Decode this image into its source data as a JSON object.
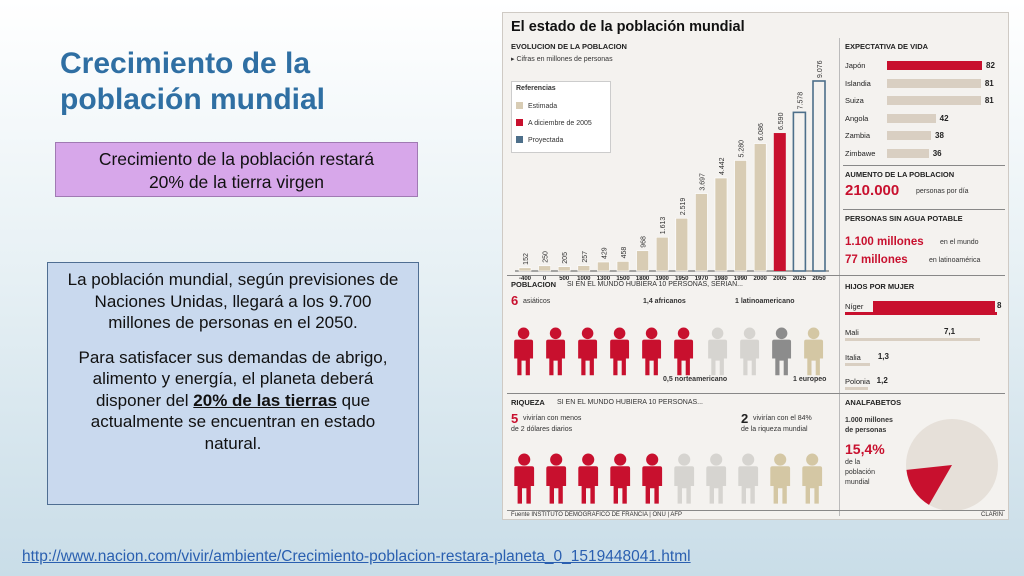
{
  "slide": {
    "title_line1": "Crecimiento de la",
    "title_line2": "población mundial",
    "subtitle_line1": "Crecimiento de la población restará",
    "subtitle_line2": "20% de la tierra virgen",
    "para1": "La población mundial, según previsiones de Naciones Unidas, llegará a los 9.700 millones de personas en el 2050.",
    "para2_pre": "Para satisfacer sus demandas de abrigo, alimento y energía, el planeta deberá disponer del ",
    "para2_bold": "20% de las tierras",
    "para2_post": " que actualmente se encuentran en estado natural.",
    "source_url": "http://www.nacion.com/vivir/ambiente/Crecimiento-poblacion-restara-planeta_0_1519448041.html"
  },
  "infographic": {
    "title": "El estado de la población mundial",
    "evolution_header": "EVOLUCION DE LA POBLACION",
    "evolution_note": "Cifras en millones de personas",
    "legend_title": "Referencias",
    "legend": [
      {
        "label": "Estimada",
        "color": "#d8ccb4"
      },
      {
        "label": "A diciembre de 2005",
        "color": "#c8102e"
      },
      {
        "label": "Proyectada",
        "color": "#4d6f8a"
      }
    ],
    "life_header": "EXPECTATIVA DE VIDA",
    "life": [
      {
        "country": "Japón",
        "value": 82,
        "highlight": true
      },
      {
        "country": "Islandia",
        "value": 81,
        "highlight": false
      },
      {
        "country": "Suiza",
        "value": 81,
        "highlight": false
      },
      {
        "country": "Angola",
        "value": 42,
        "highlight": false
      },
      {
        "country": "Zambia",
        "value": 38,
        "highlight": false
      },
      {
        "country": "Zimbawe",
        "value": 36,
        "highlight": false
      }
    ],
    "growth_header": "AUMENTO DE LA POBLACION",
    "growth_value": "210.000",
    "growth_unit": "personas por día",
    "water_header": "PERSONAS SIN AGUA POTABLE",
    "water_world_value": "1.100 millones",
    "water_world_label": "en el mundo",
    "water_latam_value": "77 millones",
    "water_latam_label": "en latinoamérica",
    "poblacion_header": "POBLACION",
    "poblacion_sub": "SI EN EL MUNDO HUBIERA 10 PERSONAS, SERIAN...",
    "p_asiaticos_n": "6",
    "p_asiaticos": "asiáticos",
    "p_africanos": "1,4 africanos",
    "p_latino": "1 latinoamericano",
    "p_norte": "0,5 norteamericano",
    "p_europeo": "1 europeo",
    "hijos_header": "HIJOS POR MUJER",
    "hijos": [
      {
        "country": "Níger",
        "value": "8",
        "highlight": true
      },
      {
        "country": "Mali",
        "value": "7,1",
        "highlight": false
      },
      {
        "country": "Italia",
        "value": "1,3",
        "highlight": false
      },
      {
        "country": "Polonia",
        "value": "1,2",
        "highlight": false
      }
    ],
    "riqueza_header": "RIQUEZA",
    "riqueza_sub": "SI EN EL MUNDO HUBIERA 10 PERSONAS...",
    "r_pobres_n": "5",
    "r_pobres_line1": "vivirían con menos",
    "r_pobres_line2": "de 2 dólares diarios",
    "r_ricos_n": "2",
    "r_ricos_line1": "vivirían con el 84%",
    "r_ricos_line2": "de la riqueza mundial",
    "analf_header": "ANALFABETOS",
    "analf_line1": "1.000 millones",
    "analf_line2": "de personas",
    "analf_pct": "15,4%",
    "analf_line3": "de la",
    "analf_line4": "población",
    "analf_line5": "mundial",
    "footer_source": "Fuente INSTITUTO DEMOGRAFICO DE FRANCIA | ONU | AFP",
    "footer_credit": "CLARIN"
  },
  "chart_data": {
    "type": "bar",
    "title": "EVOLUCION DE LA POBLACION",
    "categories": [
      "-400",
      "0",
      "500",
      "1000",
      "1300",
      "1500",
      "1800",
      "1900",
      "1950",
      "1970",
      "1980",
      "1990",
      "2000",
      "2005",
      "2025",
      "2050"
    ],
    "values": [
      152,
      250,
      205,
      257,
      429,
      458,
      968,
      1613,
      2519,
      3697,
      4442,
      5280,
      6086,
      6590,
      7578,
      9076
    ],
    "labels": [
      "152",
      "250",
      "205",
      "257",
      "429",
      "458",
      "968",
      "1.613",
      "2.519",
      "3.697",
      "4.442",
      "5.280",
      "6.086",
      "6.590",
      "7.578",
      "9.076"
    ],
    "status": [
      "estimada",
      "estimada",
      "estimada",
      "estimada",
      "estimada",
      "estimada",
      "estimada",
      "estimada",
      "estimada",
      "estimada",
      "estimada",
      "estimada",
      "estimada",
      "diciembre2005",
      "proyectada",
      "proyectada"
    ],
    "ylim": [
      0,
      9076
    ]
  }
}
